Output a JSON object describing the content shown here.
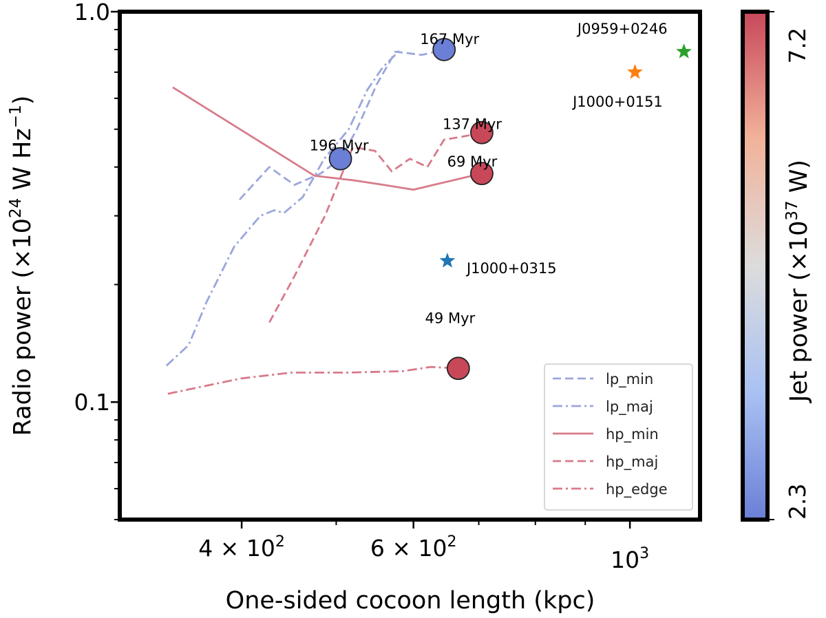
{
  "chart_data": {
    "type": "scatter",
    "xlabel": "One-sided cocoon length (kpc)",
    "ylabel_parts": {
      "pre": "Radio power (×10",
      "exp": "24",
      "mid": " W Hz",
      "exp2": "−1",
      "post": ")"
    },
    "xscale": "log",
    "yscale": "log",
    "xlim": [
      300,
      1180
    ],
    "ylim": [
      0.05,
      1.0
    ],
    "x_ticks": [
      {
        "value": 400,
        "base": "4 × 10",
        "exp": "2"
      },
      {
        "value": 600,
        "base": "6 × 10",
        "exp": "2"
      },
      {
        "value": 1000,
        "base": "10",
        "exp": "3"
      }
    ],
    "y_ticks": [
      {
        "value": 0.1,
        "label": "0.1"
      },
      {
        "value": 1.0,
        "label": "1.0"
      }
    ],
    "colorbar": {
      "label_parts": {
        "pre": "Jet power (×10",
        "exp": "37",
        "post": " W)"
      },
      "min_label": "2.3",
      "max_label": "7.2",
      "min": 2.3,
      "max": 7.2,
      "low_color": "#6b7fd6",
      "mid_color": "#dcdcdc",
      "high_color": "#c8485a"
    },
    "simulated_points": [
      {
        "label": "167 Myr",
        "x": 645,
        "y": 0.8,
        "color": "#6b7fd6"
      },
      {
        "label": "196 Myr",
        "x": 505,
        "y": 0.42,
        "color": "#6b7fd6"
      },
      {
        "label": "137 Myr",
        "x": 705,
        "y": 0.49,
        "color": "#c8485a"
      },
      {
        "label": "69 Myr",
        "x": 705,
        "y": 0.385,
        "color": "#c8485a"
      },
      {
        "label": "49 Myr",
        "x": 667,
        "y": 0.122,
        "color": "#c8485a"
      }
    ],
    "observed_sources": [
      {
        "label": "J0959+0246",
        "x": 1136,
        "y": 0.79,
        "color": "#2ca02c"
      },
      {
        "label": "J1000+0151",
        "x": 1012,
        "y": 0.7,
        "color": "#ff7f0e"
      },
      {
        "label": "J1000+0315",
        "x": 650,
        "y": 0.23,
        "color": "#1f77b4"
      }
    ],
    "series": [
      {
        "name": "lp_min",
        "color": "#9aa6dc",
        "dash": "dashed",
        "points": [
          [
            398,
            0.33
          ],
          [
            427,
            0.4
          ],
          [
            453,
            0.36
          ],
          [
            482,
            0.385
          ],
          [
            505,
            0.42
          ],
          [
            525,
            0.5
          ],
          [
            550,
            0.65
          ],
          [
            575,
            0.79
          ],
          [
            612,
            0.775
          ],
          [
            645,
            0.8
          ]
        ]
      },
      {
        "name": "lp_maj",
        "color": "#9aa6dc",
        "dash": "dashdot",
        "points": [
          [
            335,
            0.124
          ],
          [
            353,
            0.14
          ],
          [
            368,
            0.18
          ],
          [
            393,
            0.25
          ],
          [
            418,
            0.3
          ],
          [
            432,
            0.31
          ],
          [
            442,
            0.305
          ],
          [
            462,
            0.335
          ],
          [
            486,
            0.42
          ],
          [
            515,
            0.5
          ],
          [
            538,
            0.63
          ],
          [
            558,
            0.72
          ],
          [
            582,
            0.8
          ]
        ]
      },
      {
        "name": "hp_min",
        "color": "#d87a8a",
        "dash": "solid",
        "points": [
          [
            340,
            0.64
          ],
          [
            475,
            0.38
          ],
          [
            520,
            0.37
          ],
          [
            560,
            0.36
          ],
          [
            600,
            0.35
          ],
          [
            705,
            0.385
          ]
        ]
      },
      {
        "name": "hp_maj",
        "color": "#d87a8a",
        "dash": "dashed",
        "points": [
          [
            427,
            0.16
          ],
          [
            453,
            0.21
          ],
          [
            487,
            0.3
          ],
          [
            520,
            0.45
          ],
          [
            548,
            0.44
          ],
          [
            570,
            0.39
          ],
          [
            595,
            0.42
          ],
          [
            620,
            0.4
          ],
          [
            645,
            0.47
          ],
          [
            678,
            0.48
          ],
          [
            705,
            0.49
          ]
        ]
      },
      {
        "name": "hp_edge",
        "color": "#d87a8a",
        "dash": "dashdot",
        "points": [
          [
            336,
            0.105
          ],
          [
            400,
            0.115
          ],
          [
            450,
            0.119
          ],
          [
            515,
            0.119
          ],
          [
            585,
            0.12
          ],
          [
            625,
            0.123
          ],
          [
            667,
            0.122
          ]
        ]
      }
    ]
  }
}
